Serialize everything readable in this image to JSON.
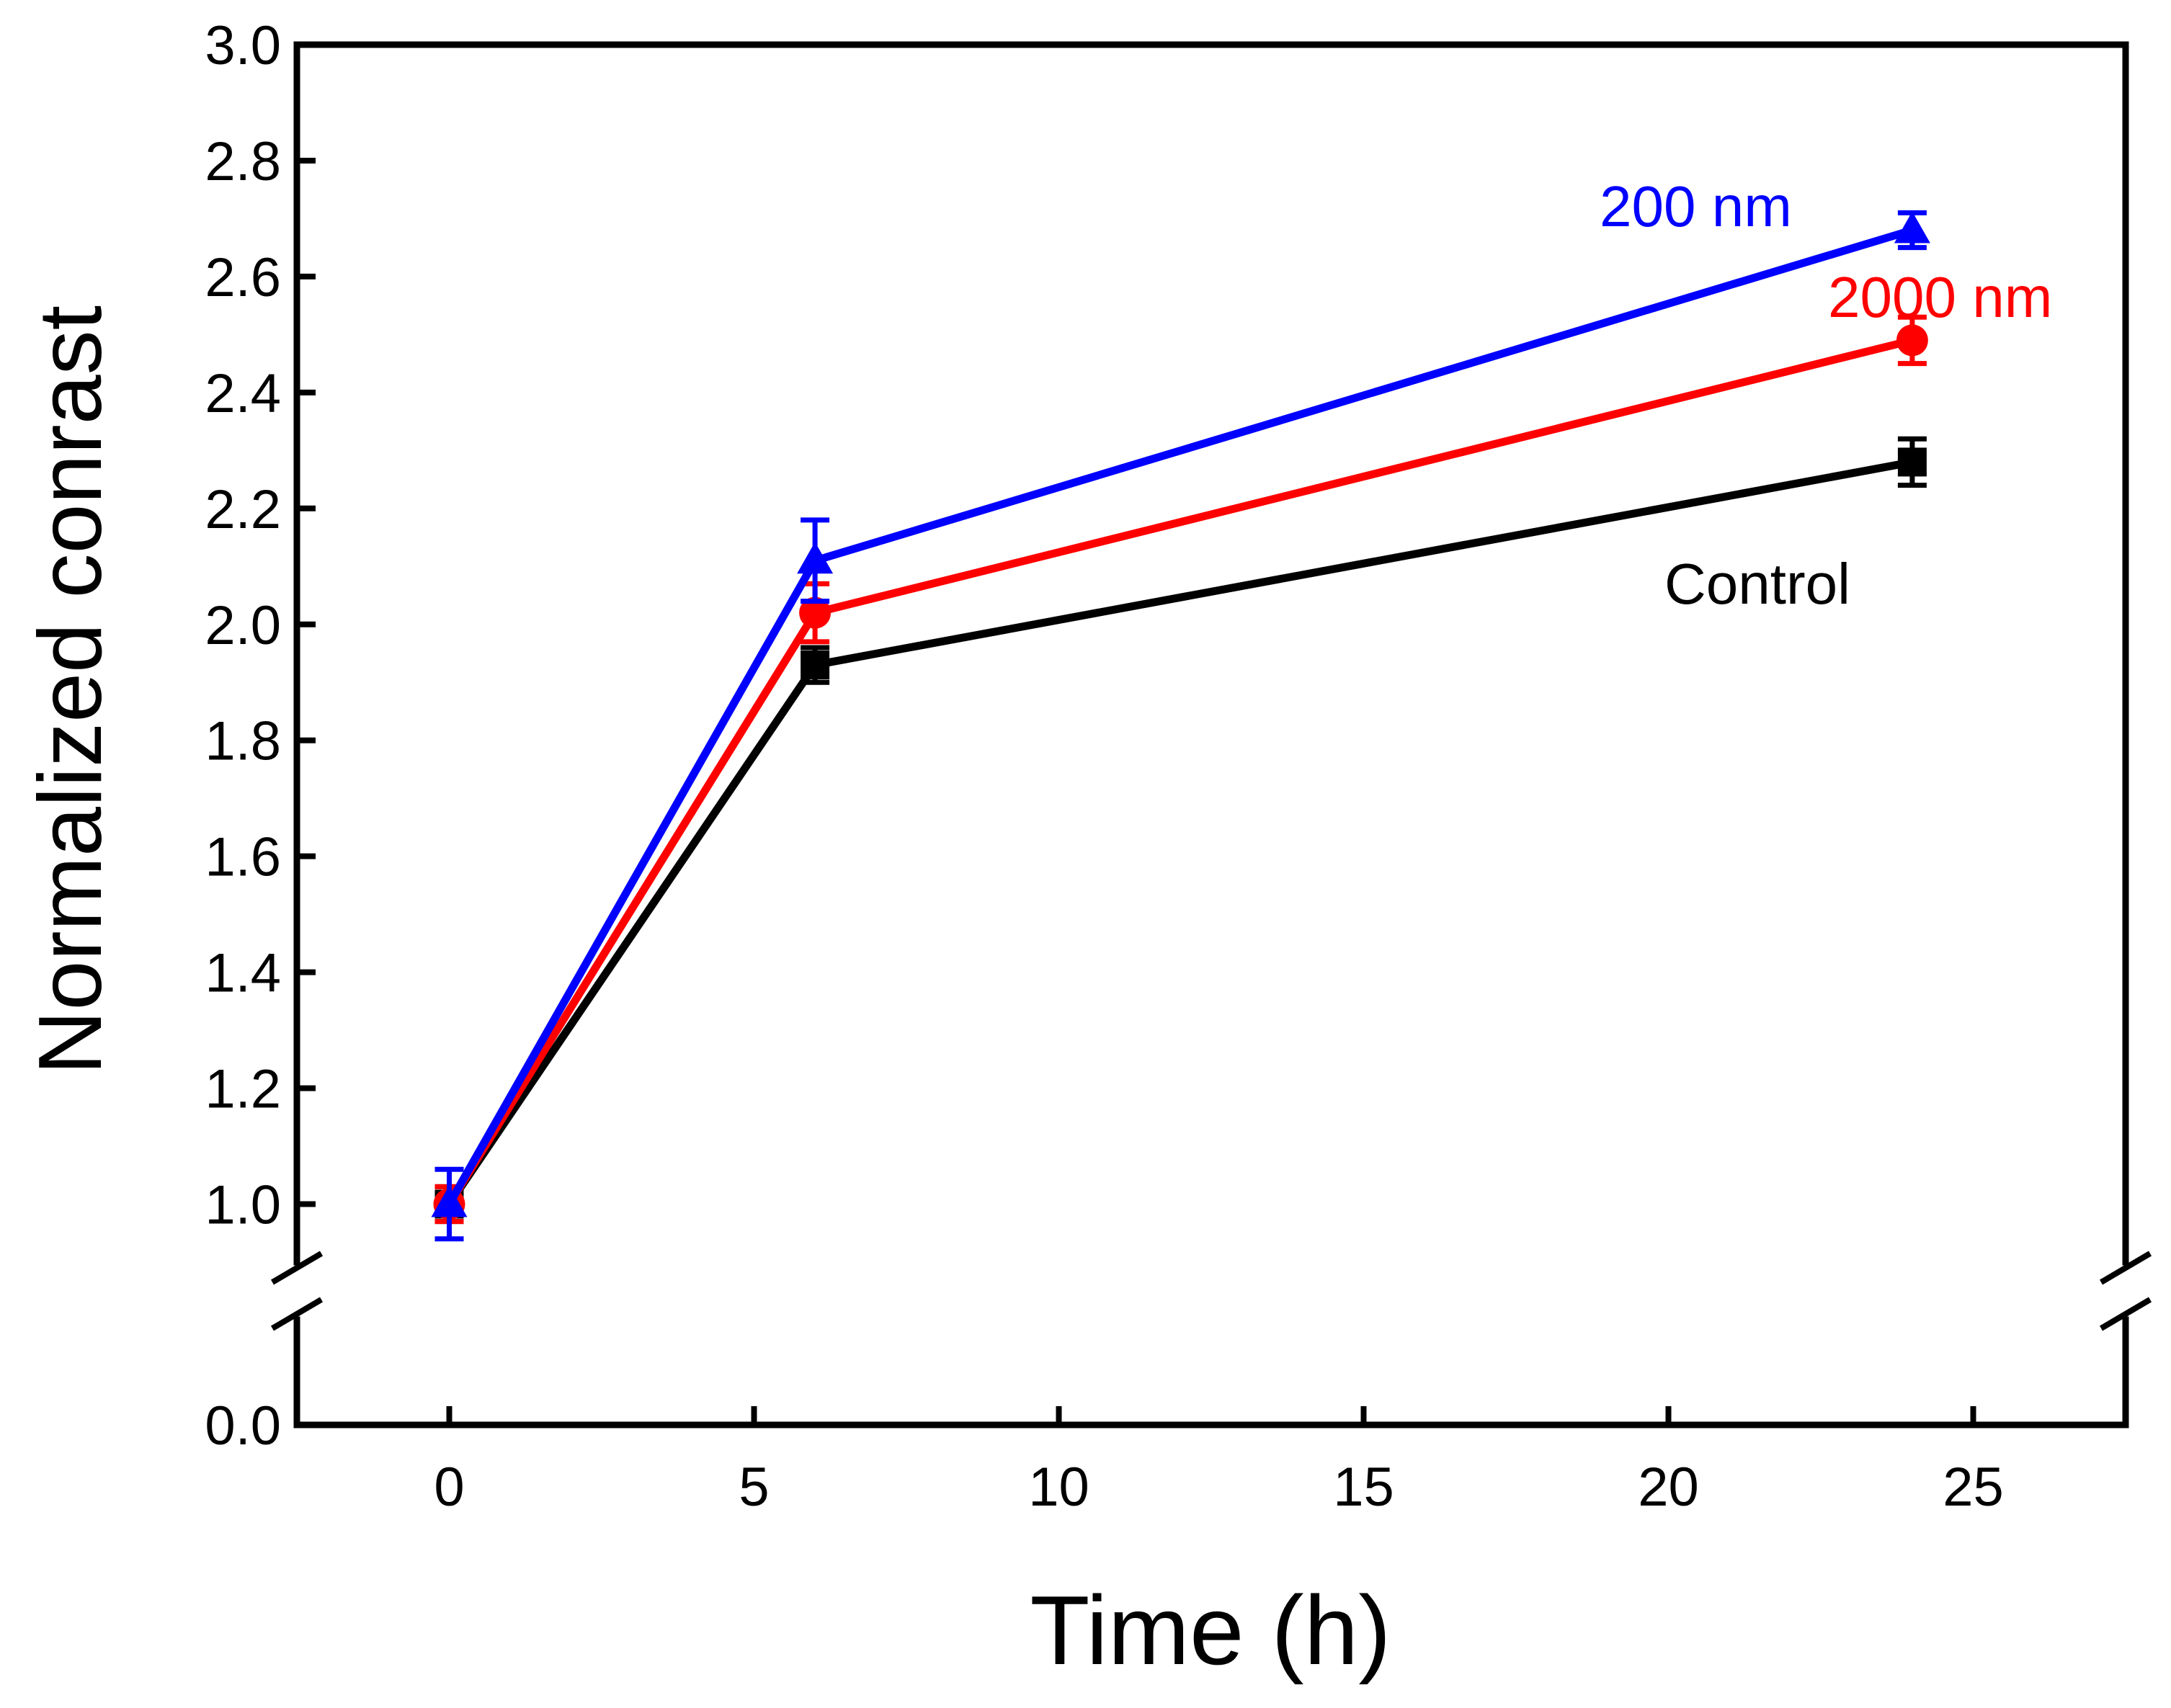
{
  "chart_data": {
    "type": "line",
    "xlabel": "Time (h)",
    "ylabel": "Normalized conrast",
    "xlim": [
      -2.5,
      27.5
    ],
    "ylim_upper": [
      0.9,
      3.0
    ],
    "ylim_lower": [
      0.0,
      0.2
    ],
    "x_ticks": [
      0,
      5,
      10,
      15,
      20,
      25
    ],
    "x_tick_labels": [
      "0",
      "5",
      "10",
      "15",
      "20",
      "25"
    ],
    "y_ticks": [
      1.0,
      1.2,
      1.4,
      1.6,
      1.8,
      2.0,
      2.2,
      2.4,
      2.6,
      2.8,
      3.0
    ],
    "y_tick_labels": [
      "1.0",
      "1.2",
      "1.4",
      "1.6",
      "1.8",
      "2.0",
      "2.2",
      "2.4",
      "2.6",
      "2.8",
      "3.0"
    ],
    "y_break_tick": 0.0,
    "y_break_tick_label": "0.0",
    "axis_break": true,
    "x": [
      0,
      6,
      24
    ],
    "series": [
      {
        "name": "Control",
        "label": "Control",
        "color": "#000000",
        "marker": "square",
        "values": [
          1.0,
          1.93,
          2.28
        ],
        "errors": [
          0.03,
          0.03,
          0.04
        ]
      },
      {
        "name": "2000 nm",
        "label": "2000 nm",
        "color": "#ff0000",
        "marker": "circle",
        "values": [
          1.0,
          2.02,
          2.49
        ],
        "errors": [
          0.03,
          0.05,
          0.04
        ]
      },
      {
        "name": "200 nm",
        "label": "200 nm",
        "color": "#0000ff",
        "marker": "triangle",
        "values": [
          1.0,
          2.11,
          2.68
        ],
        "errors": [
          0.06,
          0.07,
          0.03
        ]
      }
    ]
  }
}
